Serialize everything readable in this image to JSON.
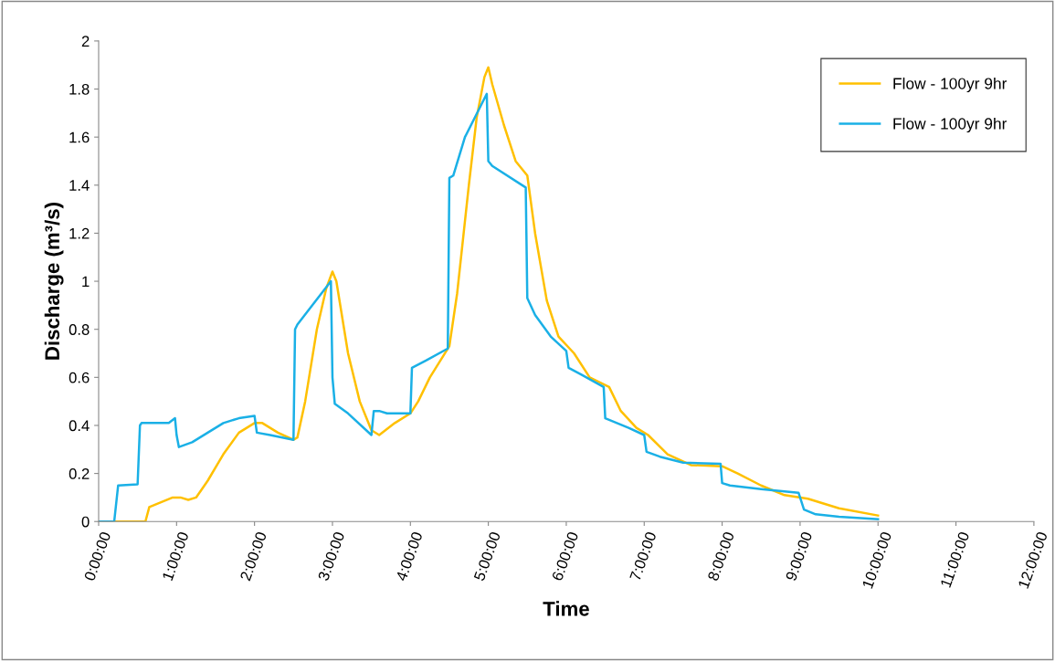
{
  "chart_data": {
    "type": "line",
    "xlabel": "Time",
    "ylabel": "Discharge (m³/s)",
    "xlim": [
      0,
      12
    ],
    "ylim": [
      0,
      2
    ],
    "xticks": [
      {
        "value": 0,
        "label": "0:00:00"
      },
      {
        "value": 1,
        "label": "1:00:00"
      },
      {
        "value": 2,
        "label": "2:00:00"
      },
      {
        "value": 3,
        "label": "3:00:00"
      },
      {
        "value": 4,
        "label": "4:00:00"
      },
      {
        "value": 5,
        "label": "5:00:00"
      },
      {
        "value": 6,
        "label": "6:00:00"
      },
      {
        "value": 7,
        "label": "7:00:00"
      },
      {
        "value": 8,
        "label": "8:00:00"
      },
      {
        "value": 9,
        "label": "9:00:00"
      },
      {
        "value": 10,
        "label": "10:00:00"
      },
      {
        "value": 11,
        "label": "11:00:00"
      },
      {
        "value": 12,
        "label": "12:00:00"
      }
    ],
    "yticks": [
      0,
      0.2,
      0.4,
      0.6,
      0.8,
      1,
      1.2,
      1.4,
      1.6,
      1.8,
      2
    ],
    "grid": false,
    "legend": "top right",
    "marker": "none",
    "line_style": "solid",
    "series": [
      {
        "name": "Flow - 100yr 9hr",
        "color": "#ffc000",
        "x": [
          0,
          0.6,
          0.65,
          0.8,
          0.95,
          1.05,
          1.15,
          1.25,
          1.4,
          1.6,
          1.8,
          2.0,
          2.1,
          2.3,
          2.5,
          2.55,
          2.65,
          2.8,
          2.92,
          3.0,
          3.05,
          3.2,
          3.35,
          3.5,
          3.6,
          3.8,
          4.0,
          4.1,
          4.25,
          4.5,
          4.6,
          4.75,
          4.85,
          4.95,
          5.0,
          5.05,
          5.2,
          5.35,
          5.5,
          5.6,
          5.75,
          5.9,
          6.1,
          6.3,
          6.55,
          6.7,
          6.9,
          7.05,
          7.3,
          7.6,
          8.0,
          8.2,
          8.5,
          8.8,
          9.1,
          9.5,
          10.0
        ],
        "values": [
          0,
          0,
          0.06,
          0.08,
          0.1,
          0.1,
          0.09,
          0.1,
          0.17,
          0.28,
          0.37,
          0.41,
          0.41,
          0.37,
          0.34,
          0.35,
          0.5,
          0.8,
          0.97,
          1.04,
          1.0,
          0.7,
          0.5,
          0.38,
          0.36,
          0.41,
          0.45,
          0.5,
          0.6,
          0.73,
          0.95,
          1.4,
          1.68,
          1.85,
          1.89,
          1.82,
          1.65,
          1.5,
          1.44,
          1.2,
          0.92,
          0.77,
          0.7,
          0.6,
          0.56,
          0.46,
          0.39,
          0.36,
          0.28,
          0.235,
          0.23,
          0.2,
          0.15,
          0.11,
          0.095,
          0.055,
          0.025
        ]
      },
      {
        "name": "Flow - 100yr 9hr",
        "color": "#1ab0e6",
        "x": [
          0,
          0.2,
          0.25,
          0.5,
          0.53,
          0.55,
          0.9,
          0.98,
          1.0,
          1.03,
          1.2,
          1.4,
          1.5,
          1.6,
          1.8,
          2.0,
          2.03,
          2.2,
          2.5,
          2.52,
          2.55,
          2.98,
          3.0,
          3.03,
          3.2,
          3.5,
          3.53,
          3.6,
          3.7,
          4.0,
          4.02,
          4.2,
          4.48,
          4.5,
          4.55,
          4.7,
          4.98,
          5.0,
          5.05,
          5.48,
          5.5,
          5.6,
          5.8,
          6.0,
          6.03,
          6.2,
          6.48,
          6.5,
          6.8,
          7.0,
          7.03,
          7.2,
          7.5,
          7.98,
          8.0,
          8.1,
          8.5,
          8.98,
          9.05,
          9.2,
          9.5,
          10.0
        ],
        "values": [
          0,
          0,
          0.15,
          0.155,
          0.4,
          0.41,
          0.41,
          0.43,
          0.36,
          0.31,
          0.33,
          0.37,
          0.39,
          0.41,
          0.43,
          0.44,
          0.37,
          0.36,
          0.34,
          0.8,
          0.82,
          1.0,
          0.6,
          0.49,
          0.45,
          0.36,
          0.46,
          0.46,
          0.45,
          0.45,
          0.64,
          0.67,
          0.72,
          1.43,
          1.44,
          1.6,
          1.78,
          1.5,
          1.48,
          1.39,
          0.93,
          0.86,
          0.77,
          0.71,
          0.64,
          0.61,
          0.56,
          0.43,
          0.39,
          0.36,
          0.29,
          0.27,
          0.245,
          0.24,
          0.16,
          0.15,
          0.135,
          0.12,
          0.05,
          0.03,
          0.02,
          0.01
        ]
      }
    ]
  }
}
